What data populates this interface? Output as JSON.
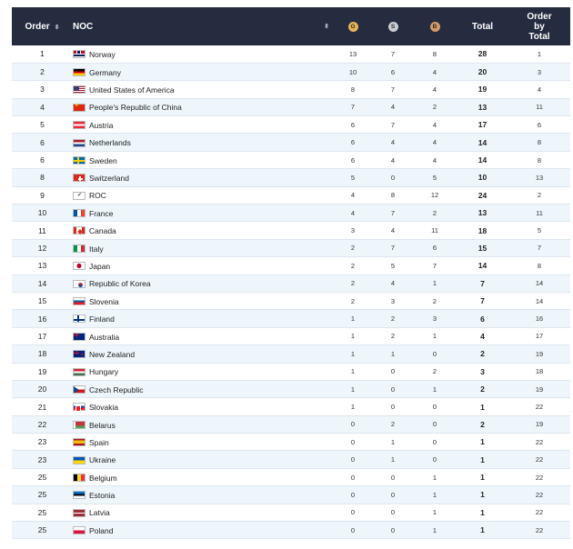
{
  "header": {
    "order": "Order",
    "noc": "NOC",
    "gold_badge": "G",
    "silver_badge": "S",
    "bronze_badge": "B",
    "total": "Total",
    "order_by_total_1": "Order",
    "order_by_total_2": "by",
    "order_by_total_3": "Total",
    "sort_icon": "⬍"
  },
  "colors": {
    "header_bg": "#252c40",
    "row_alt_bg": "#eef6fc",
    "gold": "#e6b25a",
    "silver": "#c9ccd1",
    "bronze": "#d5996a"
  },
  "rows": [
    {
      "order": "1",
      "flag": "norway-flag-icon",
      "noc": "Norway",
      "gold": "13",
      "silver": "7",
      "bronze": "8",
      "total": "28",
      "order_by_total": "1"
    },
    {
      "order": "2",
      "flag": "germany-flag-icon",
      "noc": "Germany",
      "gold": "10",
      "silver": "6",
      "bronze": "4",
      "total": "20",
      "order_by_total": "3"
    },
    {
      "order": "3",
      "flag": "usa-flag-icon",
      "noc": "United States of America",
      "gold": "8",
      "silver": "7",
      "bronze": "4",
      "total": "19",
      "order_by_total": "4"
    },
    {
      "order": "4",
      "flag": "china-flag-icon",
      "noc": "People's Republic of China",
      "gold": "7",
      "silver": "4",
      "bronze": "2",
      "total": "13",
      "order_by_total": "11"
    },
    {
      "order": "5",
      "flag": "austria-flag-icon",
      "noc": "Austria",
      "gold": "6",
      "silver": "7",
      "bronze": "4",
      "total": "17",
      "order_by_total": "6"
    },
    {
      "order": "6",
      "flag": "netherlands-flag-icon",
      "noc": "Netherlands",
      "gold": "6",
      "silver": "4",
      "bronze": "4",
      "total": "14",
      "order_by_total": "8"
    },
    {
      "order": "6",
      "flag": "sweden-flag-icon",
      "noc": "Sweden",
      "gold": "6",
      "silver": "4",
      "bronze": "4",
      "total": "14",
      "order_by_total": "8"
    },
    {
      "order": "8",
      "flag": "switzerland-flag-icon",
      "noc": "Switzerland",
      "gold": "5",
      "silver": "0",
      "bronze": "5",
      "total": "10",
      "order_by_total": "13"
    },
    {
      "order": "9",
      "flag": "roc-flag-icon",
      "noc": "ROC",
      "gold": "4",
      "silver": "8",
      "bronze": "12",
      "total": "24",
      "order_by_total": "2"
    },
    {
      "order": "10",
      "flag": "france-flag-icon",
      "noc": "France",
      "gold": "4",
      "silver": "7",
      "bronze": "2",
      "total": "13",
      "order_by_total": "11"
    },
    {
      "order": "11",
      "flag": "canada-flag-icon",
      "noc": "Canada",
      "gold": "3",
      "silver": "4",
      "bronze": "11",
      "total": "18",
      "order_by_total": "5"
    },
    {
      "order": "12",
      "flag": "italy-flag-icon",
      "noc": "Italy",
      "gold": "2",
      "silver": "7",
      "bronze": "6",
      "total": "15",
      "order_by_total": "7"
    },
    {
      "order": "13",
      "flag": "japan-flag-icon",
      "noc": "Japan",
      "gold": "2",
      "silver": "5",
      "bronze": "7",
      "total": "14",
      "order_by_total": "8"
    },
    {
      "order": "14",
      "flag": "korea-flag-icon",
      "noc": "Republic of Korea",
      "gold": "2",
      "silver": "4",
      "bronze": "1",
      "total": "7",
      "order_by_total": "14"
    },
    {
      "order": "15",
      "flag": "slovenia-flag-icon",
      "noc": "Slovenia",
      "gold": "2",
      "silver": "3",
      "bronze": "2",
      "total": "7",
      "order_by_total": "14"
    },
    {
      "order": "16",
      "flag": "finland-flag-icon",
      "noc": "Finland",
      "gold": "1",
      "silver": "2",
      "bronze": "3",
      "total": "6",
      "order_by_total": "16"
    },
    {
      "order": "17",
      "flag": "australia-flag-icon",
      "noc": "Australia",
      "gold": "1",
      "silver": "2",
      "bronze": "1",
      "total": "4",
      "order_by_total": "17"
    },
    {
      "order": "18",
      "flag": "new-zealand-flag-icon",
      "noc": "New Zealand",
      "gold": "1",
      "silver": "1",
      "bronze": "0",
      "total": "2",
      "order_by_total": "19"
    },
    {
      "order": "19",
      "flag": "hungary-flag-icon",
      "noc": "Hungary",
      "gold": "1",
      "silver": "0",
      "bronze": "2",
      "total": "3",
      "order_by_total": "18"
    },
    {
      "order": "20",
      "flag": "czech-flag-icon",
      "noc": "Czech Republic",
      "gold": "1",
      "silver": "0",
      "bronze": "1",
      "total": "2",
      "order_by_total": "19"
    },
    {
      "order": "21",
      "flag": "slovakia-flag-icon",
      "noc": "Slovakia",
      "gold": "1",
      "silver": "0",
      "bronze": "0",
      "total": "1",
      "order_by_total": "22"
    },
    {
      "order": "22",
      "flag": "belarus-flag-icon",
      "noc": "Belarus",
      "gold": "0",
      "silver": "2",
      "bronze": "0",
      "total": "2",
      "order_by_total": "19"
    },
    {
      "order": "23",
      "flag": "spain-flag-icon",
      "noc": "Spain",
      "gold": "0",
      "silver": "1",
      "bronze": "0",
      "total": "1",
      "order_by_total": "22"
    },
    {
      "order": "23",
      "flag": "ukraine-flag-icon",
      "noc": "Ukraine",
      "gold": "0",
      "silver": "1",
      "bronze": "0",
      "total": "1",
      "order_by_total": "22"
    },
    {
      "order": "25",
      "flag": "belgium-flag-icon",
      "noc": "Belgium",
      "gold": "0",
      "silver": "0",
      "bronze": "1",
      "total": "1",
      "order_by_total": "22"
    },
    {
      "order": "25",
      "flag": "estonia-flag-icon",
      "noc": "Estonia",
      "gold": "0",
      "silver": "0",
      "bronze": "1",
      "total": "1",
      "order_by_total": "22"
    },
    {
      "order": "25",
      "flag": "latvia-flag-icon",
      "noc": "Latvia",
      "gold": "0",
      "silver": "0",
      "bronze": "1",
      "total": "1",
      "order_by_total": "22"
    },
    {
      "order": "25",
      "flag": "poland-flag-icon",
      "noc": "Poland",
      "gold": "0",
      "silver": "0",
      "bronze": "1",
      "total": "1",
      "order_by_total": "22"
    }
  ]
}
